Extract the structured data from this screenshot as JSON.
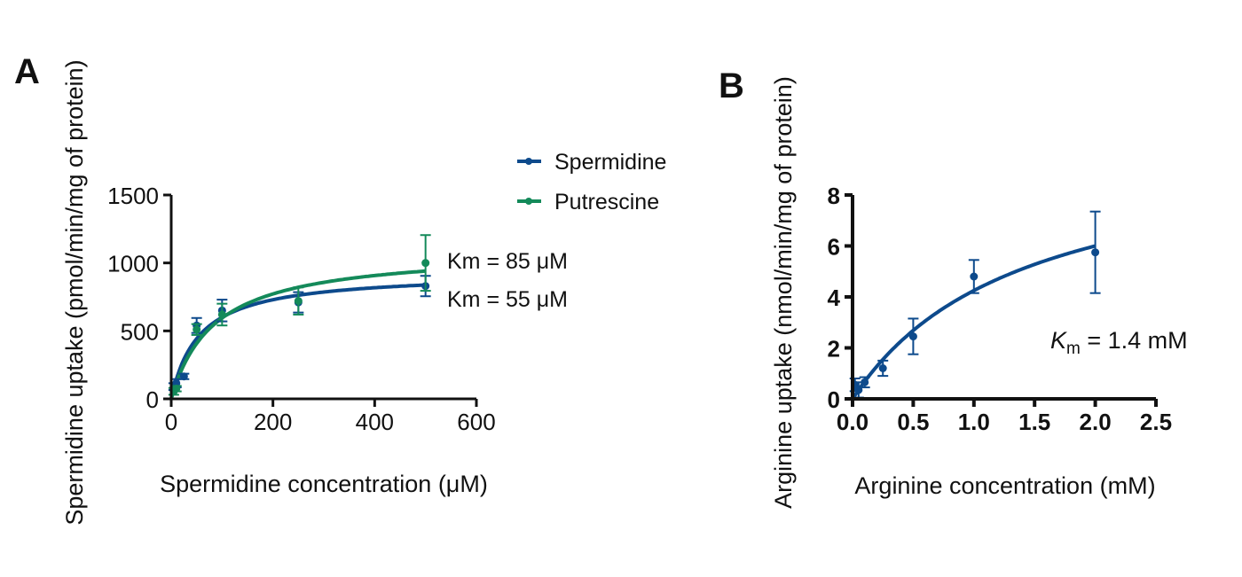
{
  "colors": {
    "spermidine": "#0d4a8c",
    "putrescine": "#148a5a",
    "axis": "#111111",
    "text": "#111111"
  },
  "chart_data": [
    {
      "panel": "A",
      "type": "scatter",
      "xlabel": "Spermidine concentration (μM)",
      "ylabel": "Spermidine uptake (pmol/min/mg of protein)",
      "xlim": [
        0,
        600
      ],
      "ylim": [
        0,
        1500
      ],
      "xticks": [
        "0",
        "200",
        "400",
        "600"
      ],
      "yticks": [
        "0",
        "500",
        "1000",
        "1500"
      ],
      "series": [
        {
          "name": "Spermidine",
          "x": [
            5,
            10,
            25,
            50,
            100,
            250,
            500
          ],
          "y": [
            90,
            115,
            165,
            540,
            650,
            710,
            830
          ],
          "yerr": [
            25,
            30,
            20,
            55,
            80,
            75,
            75
          ],
          "fit": {
            "vmax": 930,
            "km": 55
          }
        },
        {
          "name": "Putrescine",
          "x": [
            5,
            10,
            50,
            100,
            250,
            500
          ],
          "y": [
            55,
            75,
            510,
            620,
            720,
            1000
          ],
          "yerr": [
            25,
            20,
            40,
            80,
            100,
            205
          ],
          "fit": {
            "vmax": 1100,
            "km": 85
          }
        }
      ],
      "annotations": [
        "Km = 85 μM",
        "Km = 55 μM"
      ]
    },
    {
      "panel": "B",
      "type": "scatter",
      "xlabel": "Arginine concentration (mM)",
      "ylabel": "Arginine uptake (nmol/min/mg of protein)",
      "xlim": [
        0,
        2.5
      ],
      "ylim": [
        0,
        8
      ],
      "xticks": [
        "0.0",
        "0.5",
        "1.0",
        "1.5",
        "2.0",
        "2.5"
      ],
      "yticks": [
        "0",
        "2",
        "4",
        "6",
        "8"
      ],
      "series": [
        {
          "name": "Arginine",
          "x": [
            0.02,
            0.05,
            0.1,
            0.25,
            0.5,
            1.0,
            2.0
          ],
          "y": [
            0.55,
            0.35,
            0.65,
            1.2,
            2.45,
            4.8,
            5.75
          ],
          "yerr": [
            0.25,
            0.3,
            0.2,
            0.3,
            0.7,
            0.65,
            1.6
          ],
          "fit": {
            "vmax": 10.2,
            "km": 1.4
          }
        }
      ],
      "annotation": {
        "symbol": "K",
        "subscript": "m",
        "rest": " = 1.4 mM"
      }
    }
  ]
}
